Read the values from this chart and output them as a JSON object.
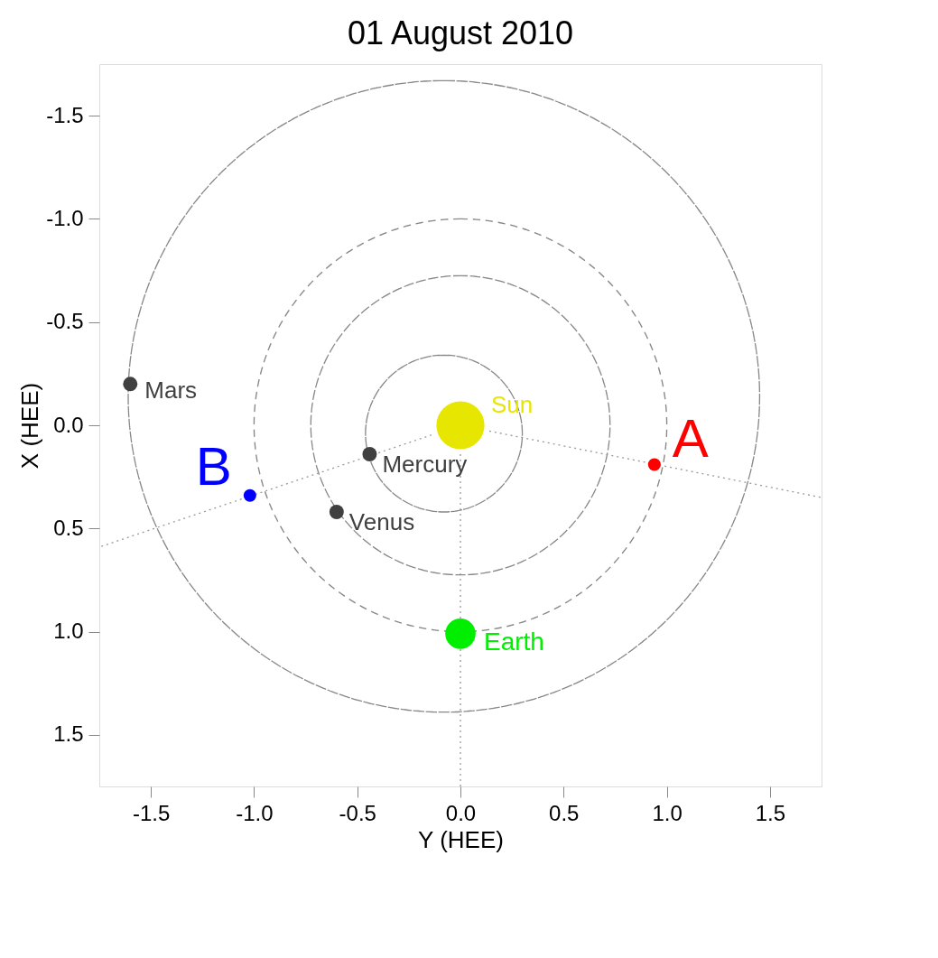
{
  "chart_data": {
    "type": "line",
    "title": "01 August 2010",
    "xlabel": "Y (HEE)",
    "ylabel": "X (HEE)",
    "xlim": [
      -1.75,
      1.75
    ],
    "ylim": [
      1.75,
      -1.75
    ],
    "xticks": [
      -1.5,
      {
        "value": -1,
        "label": "-1.0"
      },
      -0.5,
      {
        "value": 0,
        "label": "0.0"
      },
      0.5,
      {
        "value": 1,
        "label": "1.0"
      },
      1.5
    ],
    "yticks": [
      -1.5,
      {
        "value": -1,
        "label": "-1.0"
      },
      -0.5,
      {
        "value": 0,
        "label": "0.0"
      },
      0.5,
      {
        "value": 1,
        "label": "1.0"
      },
      1.5
    ],
    "grid": false,
    "series": [
      {
        "line_style": "dotted",
        "color": "#999999",
        "x": [
          0,
          0
        ],
        "values": [
          0.14,
          1.75
        ]
      },
      {
        "line_style": "dotted",
        "color": "#999999",
        "x": [
          0.14,
          1.75
        ],
        "values": [
          0.028,
          0.35
        ]
      },
      {
        "line_style": "dotted",
        "color": "#999999",
        "x": [
          -0.14,
          -1.75
        ],
        "values": [
          0.047,
          0.59
        ]
      },
      {
        "type": "bubble",
        "name": "Sun",
        "color": "#e6e600",
        "x": [
          0
        ],
        "values": [
          0
        ],
        "sizes": [
          1
        ]
      },
      {
        "type": "bubble",
        "name": "Mercury",
        "color": "#404040",
        "x": [
          -0.44
        ],
        "values": [
          0.14
        ],
        "sizes": [
          0.09
        ]
      },
      {
        "type": "bubble",
        "name": "Venus",
        "color": "#404040",
        "x": [
          -0.6
        ],
        "values": [
          0.42
        ],
        "sizes": [
          0.09
        ]
      },
      {
        "type": "bubble",
        "name": "Earth",
        "color": "#00ee00",
        "x": [
          0
        ],
        "values": [
          1.01
        ],
        "sizes": [
          0.4
        ]
      },
      {
        "type": "bubble",
        "name": "Mars",
        "color": "#404040",
        "x": [
          -1.6
        ],
        "values": [
          -0.2
        ],
        "sizes": [
          0.09
        ]
      },
      {
        "type": "bubble",
        "name": "A",
        "color": "#ff0000",
        "x": [
          0.94
        ],
        "values": [
          0.19
        ],
        "sizes": [
          0.07
        ]
      },
      {
        "type": "bubble",
        "name": "B",
        "color": "#0000ff",
        "x": [
          -1.02
        ],
        "values": [
          0.34
        ],
        "sizes": [
          0.07
        ]
      }
    ]
  }
}
